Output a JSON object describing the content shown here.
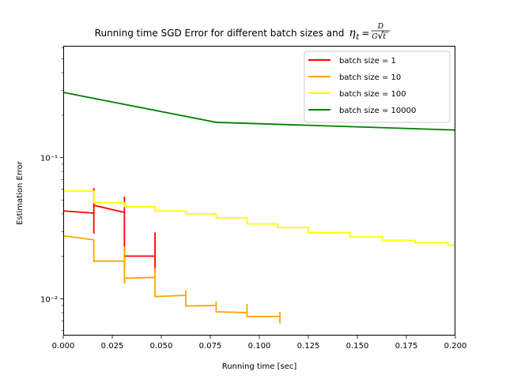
{
  "chart_data": {
    "type": "line",
    "title": "Running time SGD Error for different batch sizes and",
    "title_math": {
      "lhs": "η",
      "subscript": "t",
      "equals": "=",
      "numerator": "D",
      "denominator_left": "G",
      "radical": "√",
      "denominator_var": "t"
    },
    "xlabel": "Running time [sec]",
    "ylabel": "Estimation Error",
    "xlim": [
      0,
      0.2
    ],
    "ylim": [
      0.0055,
      0.62
    ],
    "yscale": "log",
    "grid": false,
    "legend_position": "top-right",
    "x_ticks": [
      0.0,
      0.025,
      0.05,
      0.075,
      0.1,
      0.125,
      0.15,
      0.175,
      0.2
    ],
    "x_tick_labels": [
      "0.000",
      "0.025",
      "0.050",
      "0.075",
      "0.100",
      "0.125",
      "0.150",
      "0.175",
      "0.200"
    ],
    "y_major_ticks": [
      0.01,
      0.1
    ],
    "y_major_tick_labels": [
      "10⁻²",
      "10⁻¹"
    ],
    "y_minor_ticks": [
      0.006,
      0.007,
      0.008,
      0.009,
      0.02,
      0.03,
      0.04,
      0.05,
      0.06,
      0.07,
      0.08,
      0.09,
      0.2,
      0.3,
      0.4,
      0.5,
      0.6
    ],
    "series": [
      {
        "name": "batch size = 1",
        "color": "#ff0000",
        "x": [
          0.0,
          0.0156,
          0.0156,
          0.0156,
          0.0156,
          0.0312,
          0.0312,
          0.0312,
          0.0312,
          0.0468,
          0.0468,
          0.0468,
          0.0468
        ],
        "y": [
          0.042,
          0.0405,
          0.061,
          0.029,
          0.046,
          0.041,
          0.053,
          0.0165,
          0.0201,
          0.0201,
          0.0295,
          0.0155,
          0.0201
        ]
      },
      {
        "name": "batch size = 10",
        "color": "#ffa500",
        "x": [
          0.0,
          0.0156,
          0.0156,
          0.0156,
          0.0312,
          0.0312,
          0.0312,
          0.0312,
          0.0468,
          0.0468,
          0.0468,
          0.0625,
          0.0625,
          0.0625,
          0.078,
          0.078,
          0.078,
          0.0937,
          0.0937,
          0.0937,
          0.1105,
          0.1105,
          0.1105
        ],
        "y": [
          0.028,
          0.0262,
          0.0182,
          0.0185,
          0.0185,
          0.0235,
          0.0128,
          0.014,
          0.0142,
          0.0165,
          0.0104,
          0.0106,
          0.0115,
          0.0089,
          0.009,
          0.0096,
          0.0081,
          0.008,
          0.0092,
          0.0075,
          0.0075,
          0.0081,
          0.0067
        ]
      },
      {
        "name": "batch size = 100",
        "color": "#ffff00",
        "x": [
          0.0,
          0.0156,
          0.0156,
          0.0312,
          0.0312,
          0.0468,
          0.0468,
          0.0625,
          0.0625,
          0.078,
          0.078,
          0.0937,
          0.0937,
          0.1093,
          0.1093,
          0.125,
          0.125,
          0.1462,
          0.1462,
          0.1628,
          0.1628,
          0.1795,
          0.1795,
          0.1962,
          0.1962,
          0.2
        ],
        "y": [
          0.058,
          0.058,
          0.048,
          0.048,
          0.045,
          0.045,
          0.042,
          0.042,
          0.04,
          0.04,
          0.0375,
          0.0375,
          0.034,
          0.034,
          0.032,
          0.032,
          0.0295,
          0.0295,
          0.0275,
          0.0275,
          0.026,
          0.026,
          0.025,
          0.025,
          0.024,
          0.024
        ]
      },
      {
        "name": "batch size = 10000",
        "color": "#008000",
        "x": [
          0.0,
          0.078,
          0.2
        ],
        "y": [
          0.29,
          0.178,
          0.157
        ]
      }
    ]
  }
}
